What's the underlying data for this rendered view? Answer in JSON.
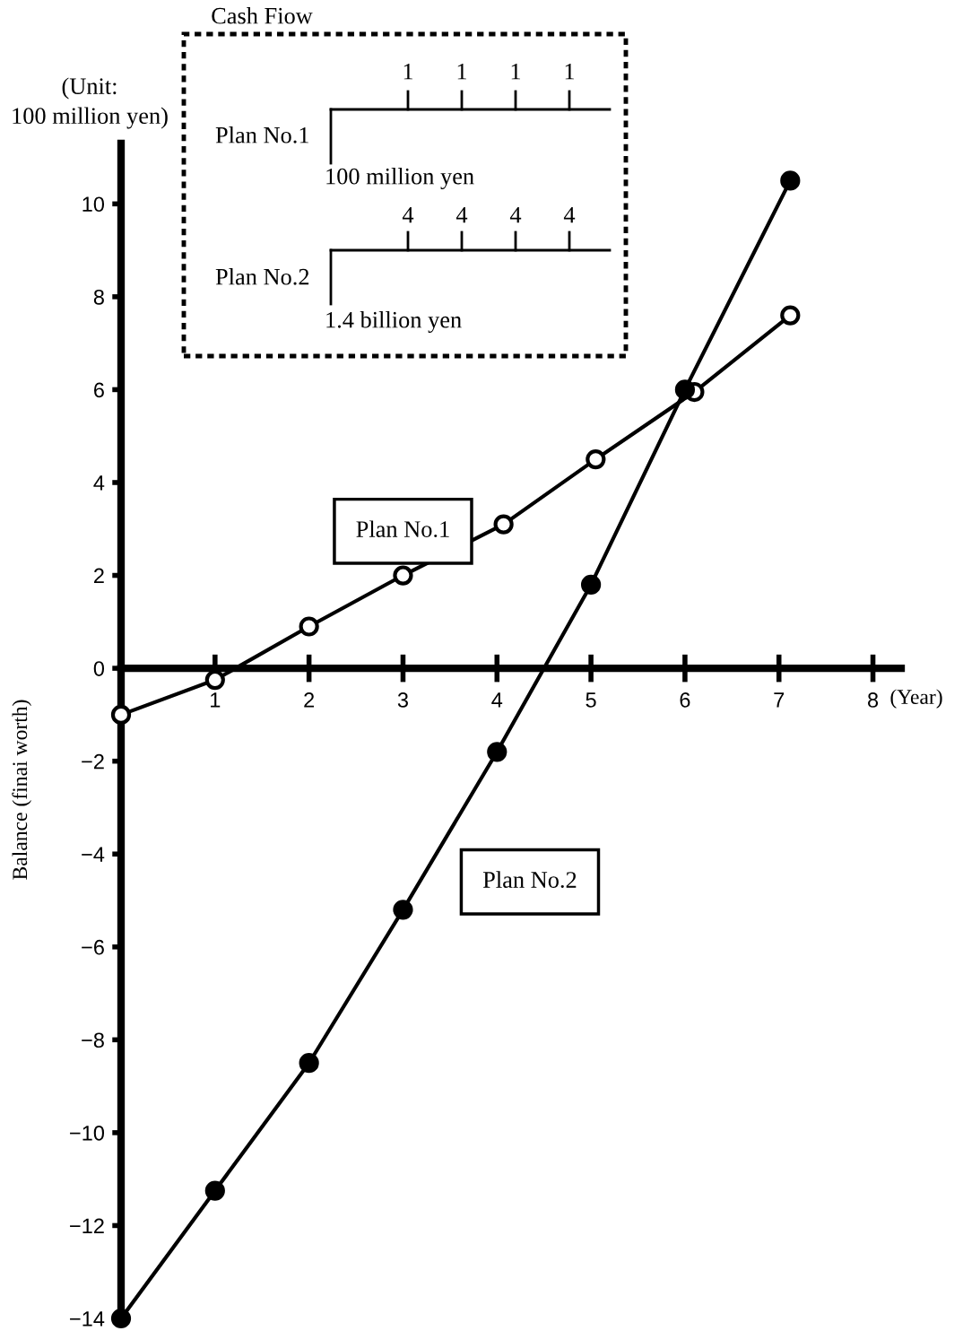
{
  "chart_data": {
    "type": "line",
    "ylabel": "Balance (finai worth)",
    "xlabel": "(Year)",
    "x": [
      0,
      1,
      2,
      3,
      4.07,
      5.05,
      6.1,
      7.12
    ],
    "series": [
      {
        "name": "Plan No.1",
        "color": "#000000",
        "values": [
          -1,
          -0.25,
          0.9,
          2.0,
          3.1,
          4.5,
          5.95,
          7.6
        ]
      },
      {
        "name": "Plan No.2",
        "color": "#000000",
        "x": [
          0,
          1,
          2,
          3,
          4,
          5,
          6,
          7.12
        ],
        "values": [
          -14,
          -11.25,
          -8.5,
          -5.2,
          -1.8,
          1.8,
          6.0,
          10.5
        ]
      }
    ],
    "xlim": [
      0,
      8.3
    ],
    "ylim": [
      -14,
      11.3
    ],
    "xticks": [
      1,
      2,
      3,
      4,
      5,
      6,
      7,
      8
    ],
    "yticks": [
      {
        "value": -14,
        "label": "−14"
      },
      {
        "value": -12,
        "label": "−12"
      },
      {
        "value": -10,
        "label": "−10"
      },
      {
        "value": -8,
        "label": "−8"
      },
      {
        "value": -6,
        "label": "−6"
      },
      {
        "value": -4,
        "label": "−4"
      },
      {
        "value": -2,
        "label": "−2"
      },
      0,
      2,
      4,
      6,
      8,
      10
    ],
    "marker": "circle",
    "line_style": "solid",
    "grid": false,
    "legend": false,
    "annotations": [
      "(Unit:\n100 million yen)",
      "Cash Fiow",
      "Plan No.1",
      "1",
      "1",
      "1",
      "1",
      "100 million yen",
      "Plan No.2",
      "4",
      "4",
      "4",
      "4",
      "1.4 billion yen"
    ]
  }
}
